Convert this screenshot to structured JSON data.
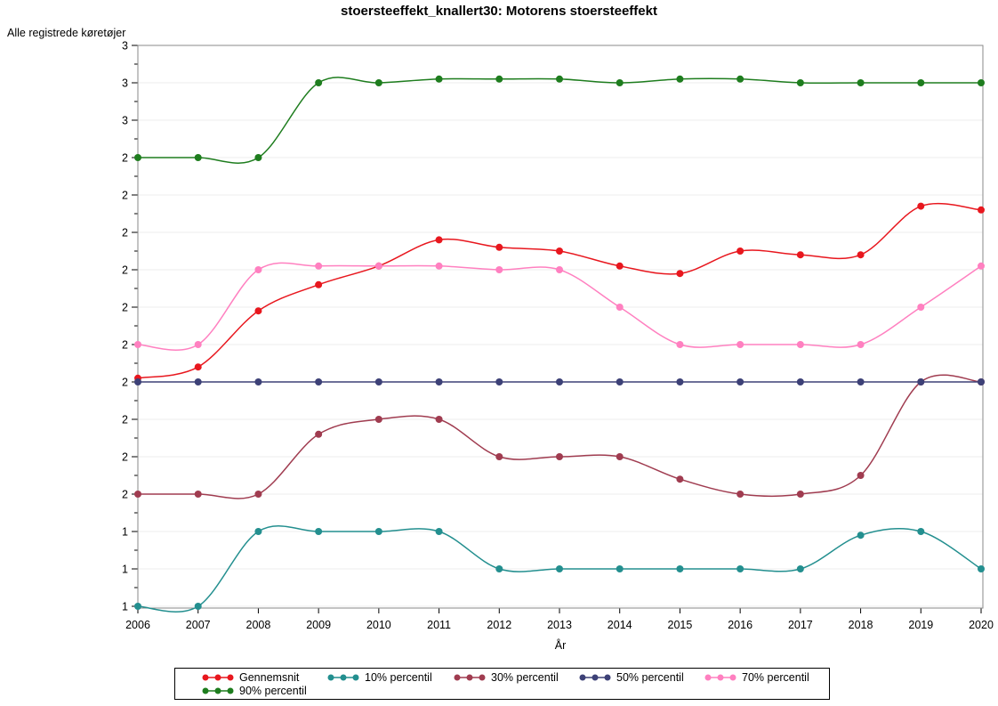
{
  "chart_data": {
    "type": "line",
    "title": "stoersteeffekt_knallert30: Motorens stoersteeffekt",
    "ylabel": "Alle registrede køretøjer",
    "xlabel": "År",
    "legend_position": "bottom",
    "grid": "horizontal-only",
    "x": [
      2006,
      2007,
      2008,
      2009,
      2010,
      2011,
      2012,
      2013,
      2014,
      2015,
      2016,
      2017,
      2018,
      2019,
      2020
    ],
    "x_tick_labels": [
      "2006",
      "2007",
      "2008",
      "2009",
      "2010",
      "2011",
      "2012",
      "2013",
      "2014",
      "2015",
      "2016",
      "2017",
      "2018",
      "2019",
      "2020"
    ],
    "y_axis": {
      "min": 1.2,
      "max": 2.7,
      "tick_step": 0.1,
      "tick_labels_top_to_bottom": [
        "3",
        "3",
        "3",
        "2",
        "2",
        "2",
        "2",
        "2",
        "2",
        "2",
        "2",
        "2",
        "2",
        "1",
        "1",
        "1"
      ]
    },
    "series": [
      {
        "name": "Gennemsnit",
        "color": "#E8171E",
        "values": [
          1.81,
          1.84,
          1.99,
          2.06,
          2.11,
          2.18,
          2.16,
          2.15,
          2.11,
          2.09,
          2.15,
          2.14,
          2.14,
          2.27,
          2.26
        ]
      },
      {
        "name": "10% percentil",
        "color": "#238F8F",
        "values": [
          1.2,
          1.2,
          1.4,
          1.4,
          1.4,
          1.4,
          1.3,
          1.3,
          1.3,
          1.3,
          1.3,
          1.3,
          1.39,
          1.4,
          1.3
        ]
      },
      {
        "name": "30% percentil",
        "color": "#A03C50",
        "values": [
          1.5,
          1.5,
          1.5,
          1.66,
          1.7,
          1.7,
          1.6,
          1.6,
          1.6,
          1.54,
          1.5,
          1.5,
          1.55,
          1.8,
          1.8
        ]
      },
      {
        "name": "50% percentil",
        "color": "#3D4177",
        "values": [
          1.8,
          1.8,
          1.8,
          1.8,
          1.8,
          1.8,
          1.8,
          1.8,
          1.8,
          1.8,
          1.8,
          1.8,
          1.8,
          1.8,
          1.8
        ]
      },
      {
        "name": "70% percentil",
        "color": "#FF80C0",
        "values": [
          1.9,
          1.9,
          2.1,
          2.11,
          2.11,
          2.11,
          2.1,
          2.1,
          2.0,
          1.9,
          1.9,
          1.9,
          1.9,
          2.0,
          2.11
        ]
      },
      {
        "name": "90% percentil",
        "color": "#1E7D1E",
        "values": [
          2.4,
          2.4,
          2.4,
          2.6,
          2.6,
          2.61,
          2.61,
          2.61,
          2.6,
          2.61,
          2.61,
          2.6,
          2.6,
          2.6,
          2.6
        ]
      }
    ],
    "colors": {
      "gridline": "#ECECEC",
      "frame": "#8A8A8A",
      "axis": "#000000",
      "background": "#FFFFFF"
    }
  }
}
